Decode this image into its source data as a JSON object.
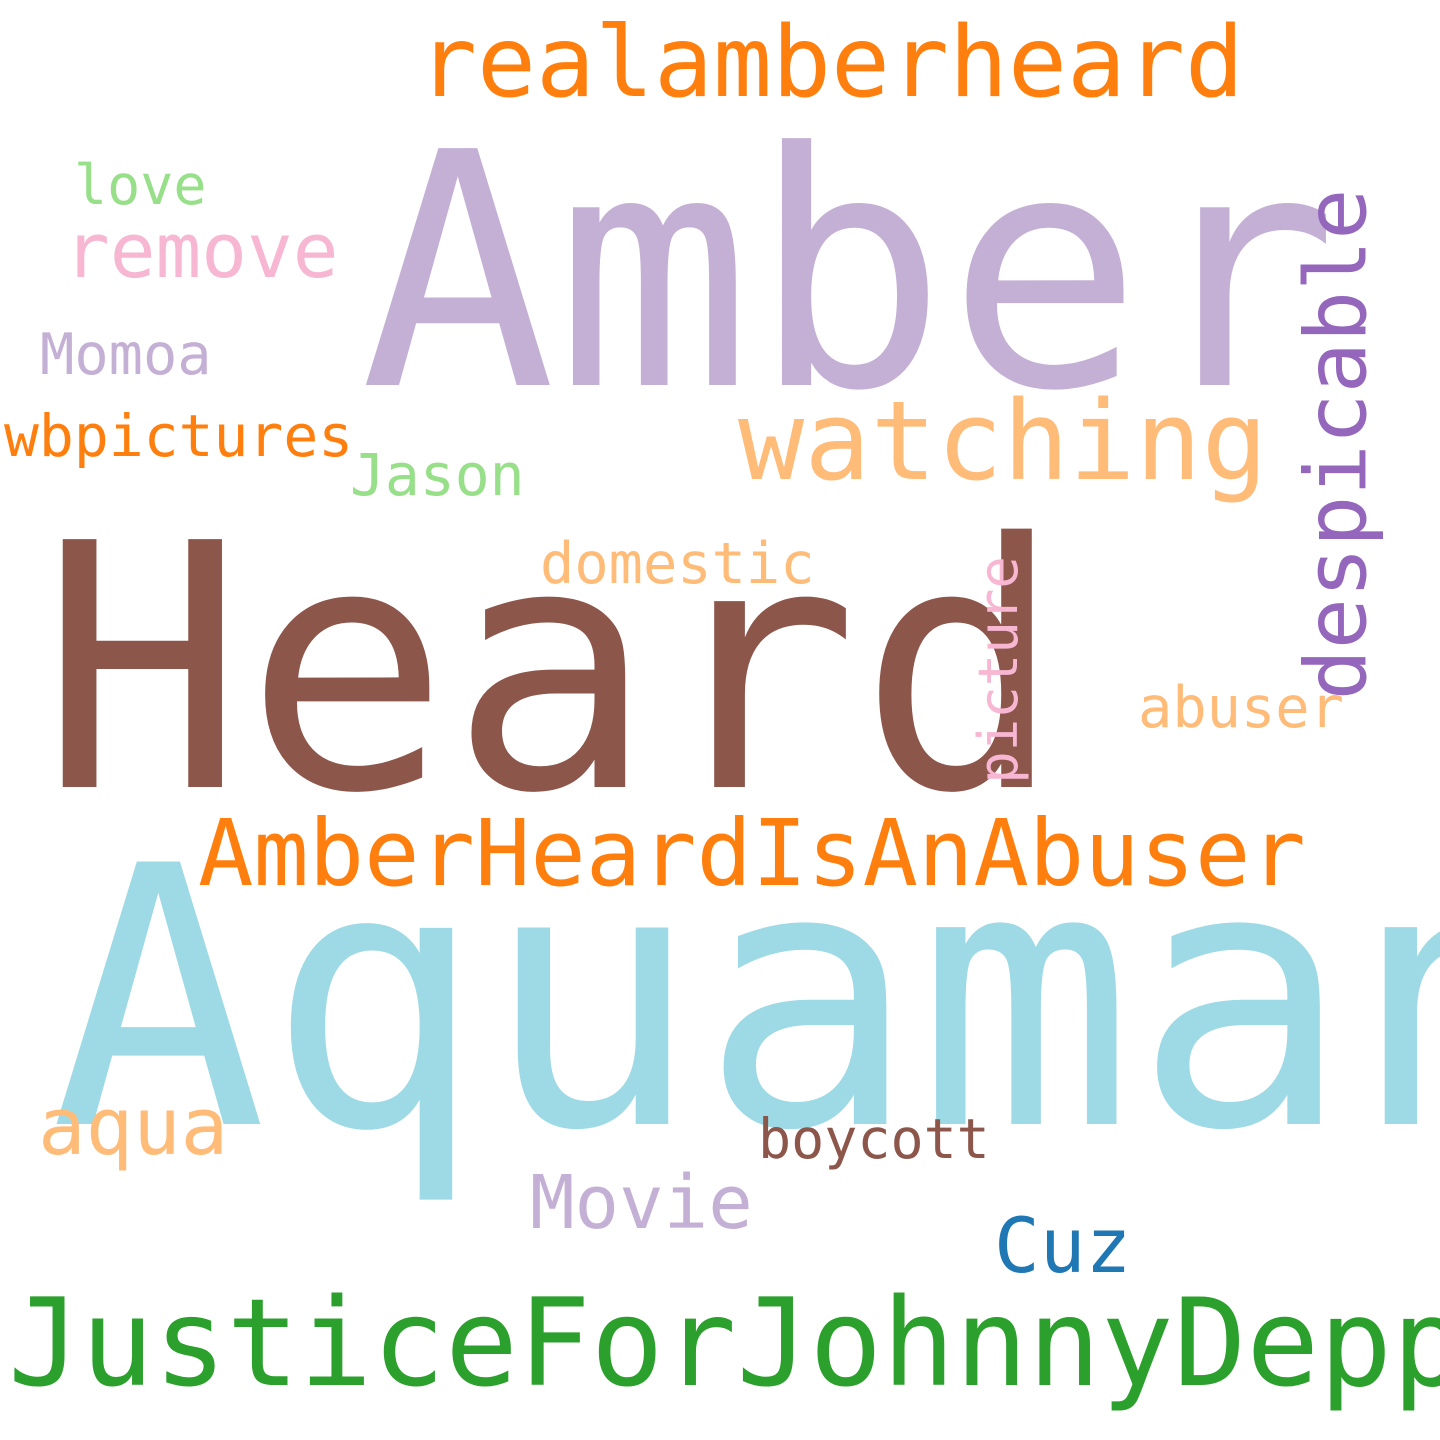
{
  "words": [
    {
      "text": "Aquaman",
      "color": "#9edae5"
    },
    {
      "text": "Heard",
      "color": "#8c564b"
    },
    {
      "text": "Amber",
      "color": "#c5b0d5"
    },
    {
      "text": "JusticeForJohnnyDepp",
      "color": "#2ca02c"
    },
    {
      "text": "AmberHeardIsAnAbuser",
      "color": "#ff7f0e"
    },
    {
      "text": "realamberheard",
      "color": "#ff7f0e"
    },
    {
      "text": "watching",
      "color": "#ffbb78"
    },
    {
      "text": "despicable",
      "color": "#9467bd"
    },
    {
      "text": "remove",
      "color": "#f7b6d2"
    },
    {
      "text": "love",
      "color": "#98df8a"
    },
    {
      "text": "Momoa",
      "color": "#c5b0d5"
    },
    {
      "text": "wbpictures",
      "color": "#ff7f0e"
    },
    {
      "text": "Jason",
      "color": "#98df8a"
    },
    {
      "text": "domestic",
      "color": "#ffbb78"
    },
    {
      "text": "picture",
      "color": "#f7b6d2"
    },
    {
      "text": "abuser",
      "color": "#ffbb78"
    },
    {
      "text": "aqua",
      "color": "#ffbb78"
    },
    {
      "text": "boycott",
      "color": "#8c564b"
    },
    {
      "text": "Movie",
      "color": "#c5b0d5"
    },
    {
      "text": "Cuz",
      "color": "#1f77b4"
    }
  ]
}
